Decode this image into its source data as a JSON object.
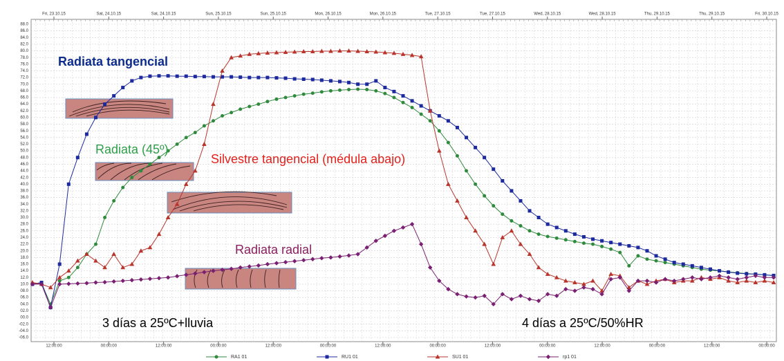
{
  "chart_data": {
    "type": "line",
    "ylim": [
      -6,
      88
    ],
    "yticks": [
      {
        "value": 88,
        "label": "88.0"
      },
      {
        "value": 86,
        "label": "86.0"
      },
      {
        "value": 84,
        "label": "84.0"
      },
      {
        "value": 82,
        "label": "82.0"
      },
      {
        "value": 80,
        "label": "80.0"
      },
      {
        "value": 78,
        "label": "78.0"
      },
      {
        "value": 76,
        "label": "76.0"
      },
      {
        "value": 74,
        "label": "74.0"
      },
      {
        "value": 72,
        "label": "72.0"
      },
      {
        "value": 70,
        "label": "70.0"
      },
      {
        "value": 68,
        "label": "68.0"
      },
      {
        "value": 66,
        "label": "66.0"
      },
      {
        "value": 64,
        "label": "64.0"
      },
      {
        "value": 62,
        "label": "62.0"
      },
      {
        "value": 60,
        "label": "60.0"
      },
      {
        "value": 58,
        "label": "58.0"
      },
      {
        "value": 56,
        "label": "56.0"
      },
      {
        "value": 54,
        "label": "54.0"
      },
      {
        "value": 52,
        "label": "52.0"
      },
      {
        "value": 50,
        "label": "50.0"
      },
      {
        "value": 48,
        "label": "48.0"
      },
      {
        "value": 46,
        "label": "46.0"
      },
      {
        "value": 44,
        "label": "44.0"
      },
      {
        "value": 42,
        "label": "42.0"
      },
      {
        "value": 40,
        "label": "40.0"
      },
      {
        "value": 38,
        "label": "38.0"
      },
      {
        "value": 36,
        "label": "36.0"
      },
      {
        "value": 34,
        "label": "34.0"
      },
      {
        "value": 32,
        "label": "32.0"
      },
      {
        "value": 30,
        "label": "30.0"
      },
      {
        "value": 28,
        "label": "28.0"
      },
      {
        "value": 26,
        "label": "26.0"
      },
      {
        "value": 24,
        "label": "24.0"
      },
      {
        "value": 22,
        "label": "22.0"
      },
      {
        "value": 20,
        "label": "20.0"
      },
      {
        "value": 18,
        "label": "18.0"
      },
      {
        "value": 16,
        "label": "16.0"
      },
      {
        "value": 14,
        "label": "14.0"
      },
      {
        "value": 12,
        "label": "12.0"
      },
      {
        "value": 10,
        "label": "10.0"
      },
      {
        "value": 8,
        "label": "08.0"
      },
      {
        "value": 6,
        "label": "06.0"
      },
      {
        "value": 4,
        "label": "04.0"
      },
      {
        "value": 2,
        "label": "02.0"
      },
      {
        "value": 0,
        "label": "00.0"
      },
      {
        "value": -2,
        "label": "-02.0"
      },
      {
        "value": -4,
        "label": "-04.0"
      },
      {
        "value": -6,
        "label": "-06.0"
      }
    ],
    "grid": true,
    "top_labels": [
      "Fri, 23.10.15",
      "Sat, 24.10.15",
      "Sat, 24.10.15",
      "Sun, 25.10.15",
      "Sun, 25.10.15",
      "Mon, 26.10.15",
      "Mon, 26.10.15",
      "Tue, 27.10.15",
      "Tue, 27.10.15",
      "Wed, 28.10.15",
      "Wed, 28.10.15",
      "Thu, 29.10.15",
      "Thu, 29.10.15",
      "Fri, 30.10.15"
    ],
    "bottom_labels": [
      "12:00:00",
      "00:00:00",
      "12:00:00",
      "00:00:00",
      "12:00:00",
      "00:00:00",
      "12:00:00",
      "00:00:00",
      "12:00:00",
      "00:00:00",
      "12:00:00",
      "00:00:00",
      "12:00:00",
      "00:00:00"
    ],
    "annotations": [
      {
        "text": "Radiata tangencial",
        "color": "#0d2c8c"
      },
      {
        "text": "Radiata (45º)",
        "color": "#2f9e48"
      },
      {
        "text": "Silvestre tangencial (médula abajo)",
        "color": "#e3211c"
      },
      {
        "text": "Radiata radial",
        "color": "#8a1f5e"
      },
      {
        "text": "3 días a 25ºC+lluvia",
        "color": "#000000"
      },
      {
        "text": "4 días a 25ºC/50%HR",
        "color": "#000000"
      }
    ],
    "series": [
      {
        "name": "RA1 01",
        "color": "#2f8a3c",
        "marker": "circle",
        "values": [
          10,
          10.2,
          4,
          11,
          12,
          15,
          19,
          22,
          30,
          35,
          39,
          42,
          44,
          46,
          48,
          50,
          52,
          54,
          55.5,
          57.5,
          59,
          60.5,
          61.5,
          62.5,
          63.3,
          64,
          64.8,
          65.5,
          66,
          66.5,
          67,
          67.3,
          67.7,
          68,
          68.2,
          68.4,
          68.5,
          68.4,
          68,
          67.2,
          66,
          64.5,
          63,
          61,
          59,
          56,
          52.5,
          48.5,
          44,
          40,
          36.5,
          33.5,
          31,
          29,
          27.5,
          26,
          25,
          24.3,
          23.8,
          23.3,
          22.8,
          22.3,
          22,
          21.3,
          20.5,
          19.5,
          15.5,
          18.5,
          17.5,
          17,
          16.5,
          16,
          15.5,
          15,
          14.5,
          14.2,
          14,
          13.7,
          13.4,
          13.2,
          13,
          12.8,
          12.5
        ]
      },
      {
        "name": "RU1 01",
        "color": "#1c2a9e",
        "marker": "square",
        "values": [
          10,
          10.5,
          3,
          16,
          40,
          48,
          55,
          60,
          64,
          66.5,
          69,
          71,
          72,
          72.4,
          72.5,
          72.5,
          72.4,
          72.4,
          72.3,
          72.3,
          72.2,
          72.2,
          72.2,
          72.1,
          72,
          72,
          72,
          71.9,
          71.8,
          71.6,
          71.5,
          71.4,
          71.2,
          71,
          70.8,
          70.5,
          70,
          70,
          71,
          69,
          67.8,
          66.5,
          65,
          63.5,
          62,
          60.5,
          59,
          57,
          54,
          51,
          48,
          44.5,
          41,
          38,
          35,
          32,
          30,
          28,
          27,
          26,
          25,
          24.2,
          23.5,
          23,
          22.5,
          22,
          21.5,
          21,
          20,
          18.5,
          17.5,
          16.5,
          16,
          15.5,
          15,
          14.5,
          14,
          13.6,
          13.3,
          13.1,
          13,
          12.8,
          12.6
        ]
      },
      {
        "name": "SU1 01",
        "color": "#b8352c",
        "marker": "triangle",
        "values": [
          10.5,
          10,
          9,
          12,
          14,
          17,
          19,
          17,
          15,
          19,
          15,
          16,
          20,
          21,
          25,
          30,
          34,
          40,
          44,
          52,
          64,
          74,
          78,
          78.5,
          79,
          79.2,
          79.4,
          79.5,
          79.6,
          79.7,
          79.8,
          79.8,
          79.9,
          79.9,
          80,
          80,
          79.9,
          79.8,
          79.7,
          79.5,
          79.3,
          79,
          78.7,
          78.3,
          62,
          50,
          40,
          35,
          30,
          26,
          22,
          16,
          24,
          26,
          22,
          19,
          15,
          13,
          12,
          11,
          10.5,
          10,
          11,
          8,
          13,
          12.5,
          9,
          11,
          10,
          11,
          11.5,
          10.5,
          11,
          11,
          12,
          11.5,
          12,
          11,
          10.5,
          11,
          10.5,
          11,
          10.5
        ]
      },
      {
        "name": "rp1 01",
        "color": "#7a1f72",
        "marker": "diamond",
        "values": [
          10,
          10,
          3,
          10,
          10.1,
          10.2,
          10.3,
          10.5,
          10.6,
          10.8,
          11,
          11.2,
          11.4,
          11.6,
          11.8,
          12,
          12.4,
          12.8,
          13.2,
          13.6,
          14,
          14.3,
          14.6,
          15,
          15.3,
          15.6,
          16,
          16.3,
          16.6,
          16.9,
          17.2,
          17.5,
          17.8,
          18,
          18.3,
          18.6,
          19,
          21,
          23,
          24.5,
          26,
          27,
          28,
          22,
          15,
          11,
          8.5,
          7,
          6.3,
          6,
          6.5,
          4,
          7,
          5.5,
          6.5,
          5.5,
          5,
          7,
          6.5,
          8.5,
          8,
          9,
          8.5,
          7,
          11.5,
          12,
          8,
          11,
          11,
          10.5,
          11.5,
          11,
          11.5,
          12,
          11.5,
          12,
          12.5,
          12,
          11.5,
          12,
          12.5,
          12,
          12
        ]
      }
    ]
  }
}
